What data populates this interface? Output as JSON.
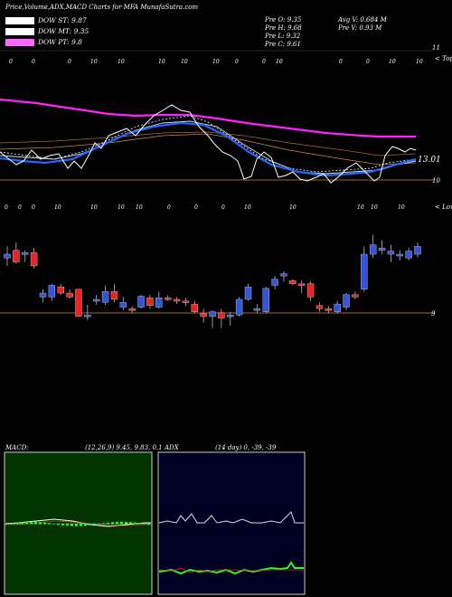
{
  "header": {
    "title": "Price,Volume,ADX,MACD Charts for MFA MunafaSutra.com"
  },
  "legend": [
    {
      "label": "DOW ST: 9.87",
      "color": "#ffffff"
    },
    {
      "label": "DOW MT: 9.35",
      "color": "#ffffff"
    },
    {
      "label": "DOW PT: 9.8",
      "color": "#ff66ff"
    }
  ],
  "quote": {
    "pre_o": "Pre   O: 9.35",
    "pre_h": "Pre   H: 9.68",
    "pre_l": "Pre   L: 9.32",
    "pre_c": "Pre   C: 9.61",
    "avg_v": "Avg V: 0.684   M",
    "pre_v": "Pre    V: 0.93 M"
  },
  "upper_chart": {
    "right_top_label": "11",
    "right_topic": "< Topo",
    "price_label": "13.01",
    "right_bottom_label": "10",
    "date_marks": [
      "0",
      "0",
      "0",
      "10",
      "10",
      "10",
      "10",
      "10",
      "0",
      "0",
      "10",
      "0",
      "0",
      "10",
      "10"
    ]
  },
  "lower_chart": {
    "right_label": "< Lowe",
    "right_price": "9",
    "date_marks": [
      "0",
      "0",
      "0",
      "10",
      "10",
      "10",
      "10",
      "0",
      "0",
      "0",
      "10",
      "10",
      "10",
      "10",
      "10"
    ]
  },
  "macd": {
    "label": "MACD:",
    "params": "(12,26,9) 9.45, 9.83, 0.1"
  },
  "adx": {
    "label": "ADX",
    "params": "(14  day) 0, -39, -39"
  },
  "colors": {
    "bull": "#3355dd",
    "bear": "#ee2222",
    "ema_blue": "#2266ff",
    "magenta": "#ff22ff",
    "orange": "#cc8844",
    "macd_bg": "#003300",
    "adx_bg": "#000022",
    "adx_green": "#22ff22"
  },
  "chart_data": {
    "type": "candlestick",
    "title": "",
    "candles": [
      {
        "o": 9.95,
        "h": 10.1,
        "l": 9.85,
        "c": 10.0
      },
      {
        "o": 10.05,
        "h": 10.15,
        "l": 9.88,
        "c": 9.9
      },
      {
        "o": 10.0,
        "h": 10.05,
        "l": 9.9,
        "c": 10.02
      },
      {
        "o": 10.02,
        "h": 10.08,
        "l": 9.82,
        "c": 9.85
      },
      {
        "o": 9.45,
        "h": 9.55,
        "l": 9.38,
        "c": 9.5
      },
      {
        "o": 9.45,
        "h": 9.62,
        "l": 9.4,
        "c": 9.6
      },
      {
        "o": 9.58,
        "h": 9.62,
        "l": 9.48,
        "c": 9.5
      },
      {
        "o": 9.5,
        "h": 9.55,
        "l": 9.43,
        "c": 9.45
      },
      {
        "o": 9.55,
        "h": 9.55,
        "l": 9.2,
        "c": 9.2
      },
      {
        "o": 9.2,
        "h": 9.35,
        "l": 9.15,
        "c": 9.22
      },
      {
        "o": 9.4,
        "h": 9.48,
        "l": 9.35,
        "c": 9.42
      },
      {
        "o": 9.38,
        "h": 9.6,
        "l": 9.35,
        "c": 9.52
      },
      {
        "o": 9.52,
        "h": 9.62,
        "l": 9.38,
        "c": 9.42
      },
      {
        "o": 9.32,
        "h": 9.45,
        "l": 9.28,
        "c": 9.38
      },
      {
        "o": 9.3,
        "h": 9.33,
        "l": 9.25,
        "c": 9.28
      },
      {
        "o": 9.32,
        "h": 9.48,
        "l": 9.3,
        "c": 9.46
      },
      {
        "o": 9.44,
        "h": 9.48,
        "l": 9.3,
        "c": 9.34
      },
      {
        "o": 9.32,
        "h": 9.52,
        "l": 9.3,
        "c": 9.44
      },
      {
        "o": 9.44,
        "h": 9.47,
        "l": 9.4,
        "c": 9.42
      },
      {
        "o": 9.42,
        "h": 9.45,
        "l": 9.36,
        "c": 9.4
      },
      {
        "o": 9.4,
        "h": 9.44,
        "l": 9.33,
        "c": 9.38
      },
      {
        "o": 9.36,
        "h": 9.4,
        "l": 9.24,
        "c": 9.26
      },
      {
        "o": 9.24,
        "h": 9.3,
        "l": 9.12,
        "c": 9.2
      },
      {
        "o": 9.2,
        "h": 9.28,
        "l": 9.05,
        "c": 9.26
      },
      {
        "o": 9.25,
        "h": 9.3,
        "l": 9.05,
        "c": 9.18
      },
      {
        "o": 9.2,
        "h": 9.26,
        "l": 9.08,
        "c": 9.22
      },
      {
        "o": 9.22,
        "h": 9.45,
        "l": 9.2,
        "c": 9.42
      },
      {
        "o": 9.42,
        "h": 9.62,
        "l": 9.4,
        "c": 9.58
      },
      {
        "o": 9.28,
        "h": 9.36,
        "l": 9.25,
        "c": 9.3
      },
      {
        "o": 9.26,
        "h": 9.58,
        "l": 9.24,
        "c": 9.56
      },
      {
        "o": 9.6,
        "h": 9.72,
        "l": 9.55,
        "c": 9.68
      },
      {
        "o": 9.72,
        "h": 9.78,
        "l": 9.65,
        "c": 9.75
      },
      {
        "o": 9.66,
        "h": 9.68,
        "l": 9.6,
        "c": 9.62
      },
      {
        "o": 9.62,
        "h": 9.66,
        "l": 9.5,
        "c": 9.6
      },
      {
        "o": 9.62,
        "h": 9.65,
        "l": 9.4,
        "c": 9.45
      },
      {
        "o": 9.34,
        "h": 9.38,
        "l": 9.26,
        "c": 9.3
      },
      {
        "o": 9.3,
        "h": 9.34,
        "l": 9.24,
        "c": 9.28
      },
      {
        "o": 9.26,
        "h": 9.4,
        "l": 9.24,
        "c": 9.36
      },
      {
        "o": 9.32,
        "h": 9.5,
        "l": 9.28,
        "c": 9.48
      },
      {
        "o": 9.48,
        "h": 9.52,
        "l": 9.42,
        "c": 9.45
      },
      {
        "o": 9.55,
        "h": 10.1,
        "l": 9.52,
        "c": 10.0
      },
      {
        "o": 10.0,
        "h": 10.25,
        "l": 9.95,
        "c": 10.12
      },
      {
        "o": 10.05,
        "h": 10.18,
        "l": 10.0,
        "c": 10.08
      },
      {
        "o": 10.0,
        "h": 10.12,
        "l": 9.9,
        "c": 10.04
      },
      {
        "o": 9.98,
        "h": 10.05,
        "l": 9.92,
        "c": 10.0
      },
      {
        "o": 9.95,
        "h": 10.08,
        "l": 9.92,
        "c": 10.04
      },
      {
        "o": 10.0,
        "h": 10.15,
        "l": 9.96,
        "c": 10.1
      }
    ],
    "ylim": [
      8.85,
      10.5
    ]
  }
}
